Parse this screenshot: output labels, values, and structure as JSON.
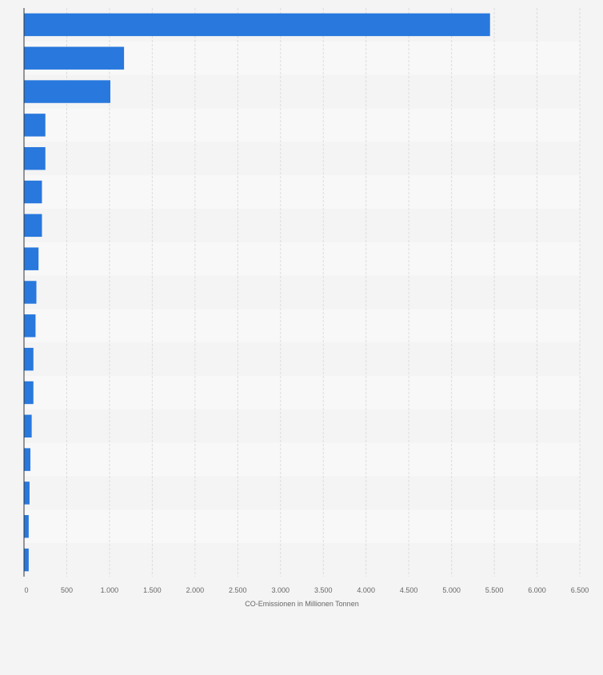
{
  "chart_data": {
    "type": "bar",
    "orientation": "horizontal",
    "xlabel": "CO-Emissionen in Millionen Tonnen",
    "xlim": [
      0,
      6500
    ],
    "xticks": [
      0,
      500,
      1000,
      1500,
      2000,
      2500,
      3000,
      3500,
      4000,
      4500,
      5000,
      5500,
      6000,
      6500
    ],
    "xtick_labels": [
      "0",
      "500",
      "1.000",
      "1.500",
      "2.000",
      "2.500",
      "3.000",
      "3.500",
      "4.000",
      "4.500",
      "5.000",
      "5.500",
      "6.000",
      "6.500"
    ],
    "values": [
      5450,
      1170,
      1010,
      250,
      250,
      210,
      210,
      170,
      145,
      135,
      110,
      110,
      90,
      75,
      65,
      55,
      55
    ],
    "grid": true,
    "bar_color": "#2878dd"
  }
}
